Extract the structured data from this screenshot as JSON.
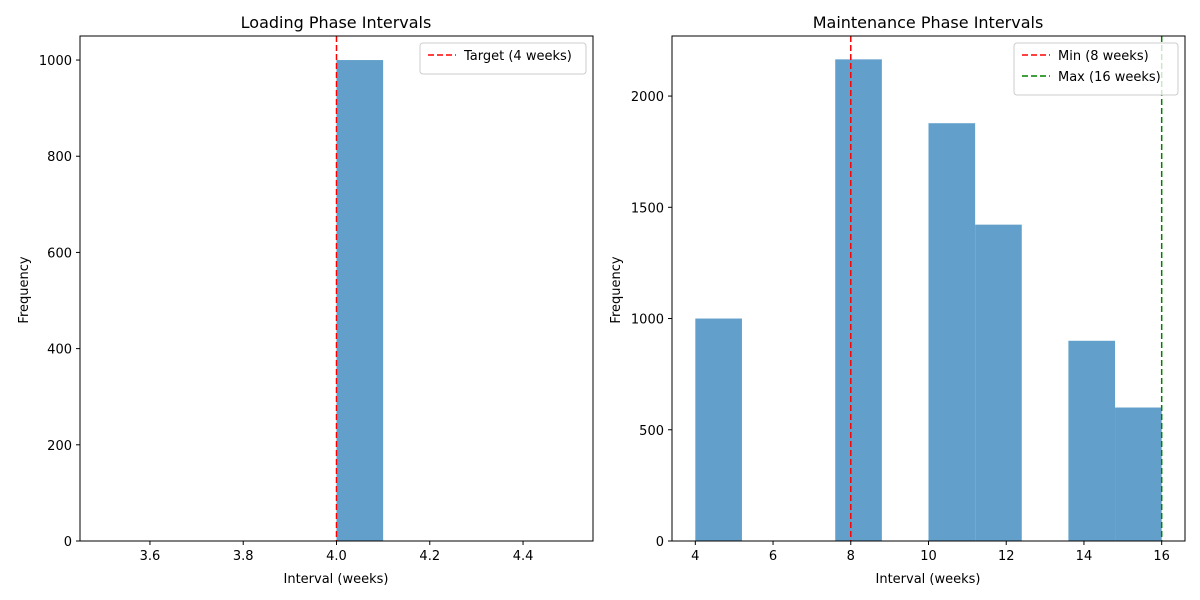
{
  "figure": {
    "bar_color": "#62a0cb",
    "bar_opacity": 0.7
  },
  "chart_data": [
    {
      "type": "bar",
      "title": "Loading Phase Intervals",
      "xlabel": "Interval (weeks)",
      "ylabel": "Frequency",
      "xlim": [
        3.45,
        4.55
      ],
      "ylim": [
        0,
        1050
      ],
      "xticks": [
        3.6,
        3.8,
        4.0,
        4.2,
        4.4
      ],
      "xtick_labels": [
        "3.6",
        "3.8",
        "4.0",
        "4.2",
        "4.4"
      ],
      "yticks": [
        0,
        200,
        400,
        600,
        800,
        1000
      ],
      "ytick_labels": [
        "0",
        "200",
        "400",
        "600",
        "800",
        "1000"
      ],
      "bins": [
        {
          "x0": 4.0,
          "x1": 4.1,
          "value": 1000
        }
      ],
      "reference_lines": [
        {
          "x": 4,
          "color": "#ff0000",
          "label": "Target (4 weeks)"
        }
      ],
      "legend_position": "top-right"
    },
    {
      "type": "bar",
      "title": "Maintenance Phase Intervals",
      "xlabel": "Interval (weeks)",
      "ylabel": "Frequency",
      "xlim": [
        3.4,
        16.6
      ],
      "ylim": [
        0,
        2270
      ],
      "xticks": [
        4,
        6,
        8,
        10,
        12,
        14,
        16
      ],
      "xtick_labels": [
        "4",
        "6",
        "8",
        "10",
        "12",
        "14",
        "16"
      ],
      "yticks": [
        0,
        500,
        1000,
        1500,
        2000
      ],
      "ytick_labels": [
        "0",
        "500",
        "1000",
        "1500",
        "2000"
      ],
      "bins": [
        {
          "x0": 4.0,
          "x1": 5.2,
          "value": 1000
        },
        {
          "x0": 7.6,
          "x1": 8.8,
          "value": 2165
        },
        {
          "x0": 10.0,
          "x1": 11.2,
          "value": 1878
        },
        {
          "x0": 11.2,
          "x1": 12.4,
          "value": 1422
        },
        {
          "x0": 13.6,
          "x1": 14.8,
          "value": 900
        },
        {
          "x0": 14.8,
          "x1": 16.0,
          "value": 600
        }
      ],
      "reference_lines": [
        {
          "x": 8,
          "color": "#ff0000",
          "label": "Min (8 weeks)"
        },
        {
          "x": 16,
          "color": "#008000",
          "label": "Max (16 weeks)"
        }
      ],
      "legend_position": "top-right"
    }
  ]
}
